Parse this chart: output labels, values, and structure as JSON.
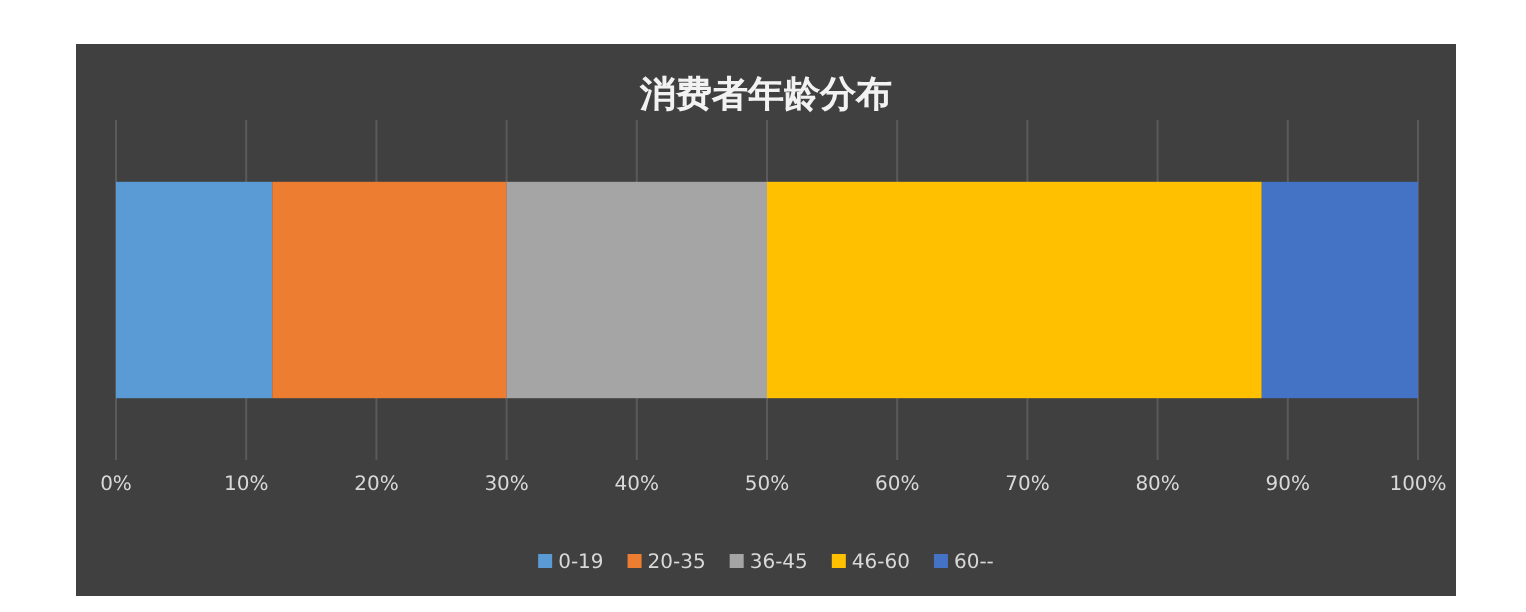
{
  "chart_data": {
    "type": "bar",
    "title": "消费者年龄分布",
    "orientation": "horizontal",
    "stacked": true,
    "categories": [
      null
    ],
    "series": [
      {
        "name": "0-19",
        "color": "#5b9bd5",
        "values": [
          12
        ]
      },
      {
        "name": "20-35",
        "color": "#ed7d31",
        "values": [
          18
        ]
      },
      {
        "name": "36-45",
        "color": "#a5a5a5",
        "values": [
          20
        ]
      },
      {
        "name": "46-60",
        "color": "#ffc000",
        "values": [
          38
        ]
      },
      {
        "name": "60--",
        "color": "#4472c4",
        "values": [
          12
        ]
      }
    ],
    "xlim": [
      0,
      100
    ],
    "xticks": [
      {
        "value": 0,
        "label": "0%"
      },
      {
        "value": 10,
        "label": "10%"
      },
      {
        "value": 20,
        "label": "20%"
      },
      {
        "value": 30,
        "label": "30%"
      },
      {
        "value": 40,
        "label": "40%"
      },
      {
        "value": 50,
        "label": "50%"
      },
      {
        "value": 60,
        "label": "60%"
      },
      {
        "value": 70,
        "label": "70%"
      },
      {
        "value": 80,
        "label": "80%"
      },
      {
        "value": 90,
        "label": "90%"
      },
      {
        "value": 100,
        "label": "100%"
      }
    ],
    "grid": "x",
    "legend": "bottom"
  }
}
